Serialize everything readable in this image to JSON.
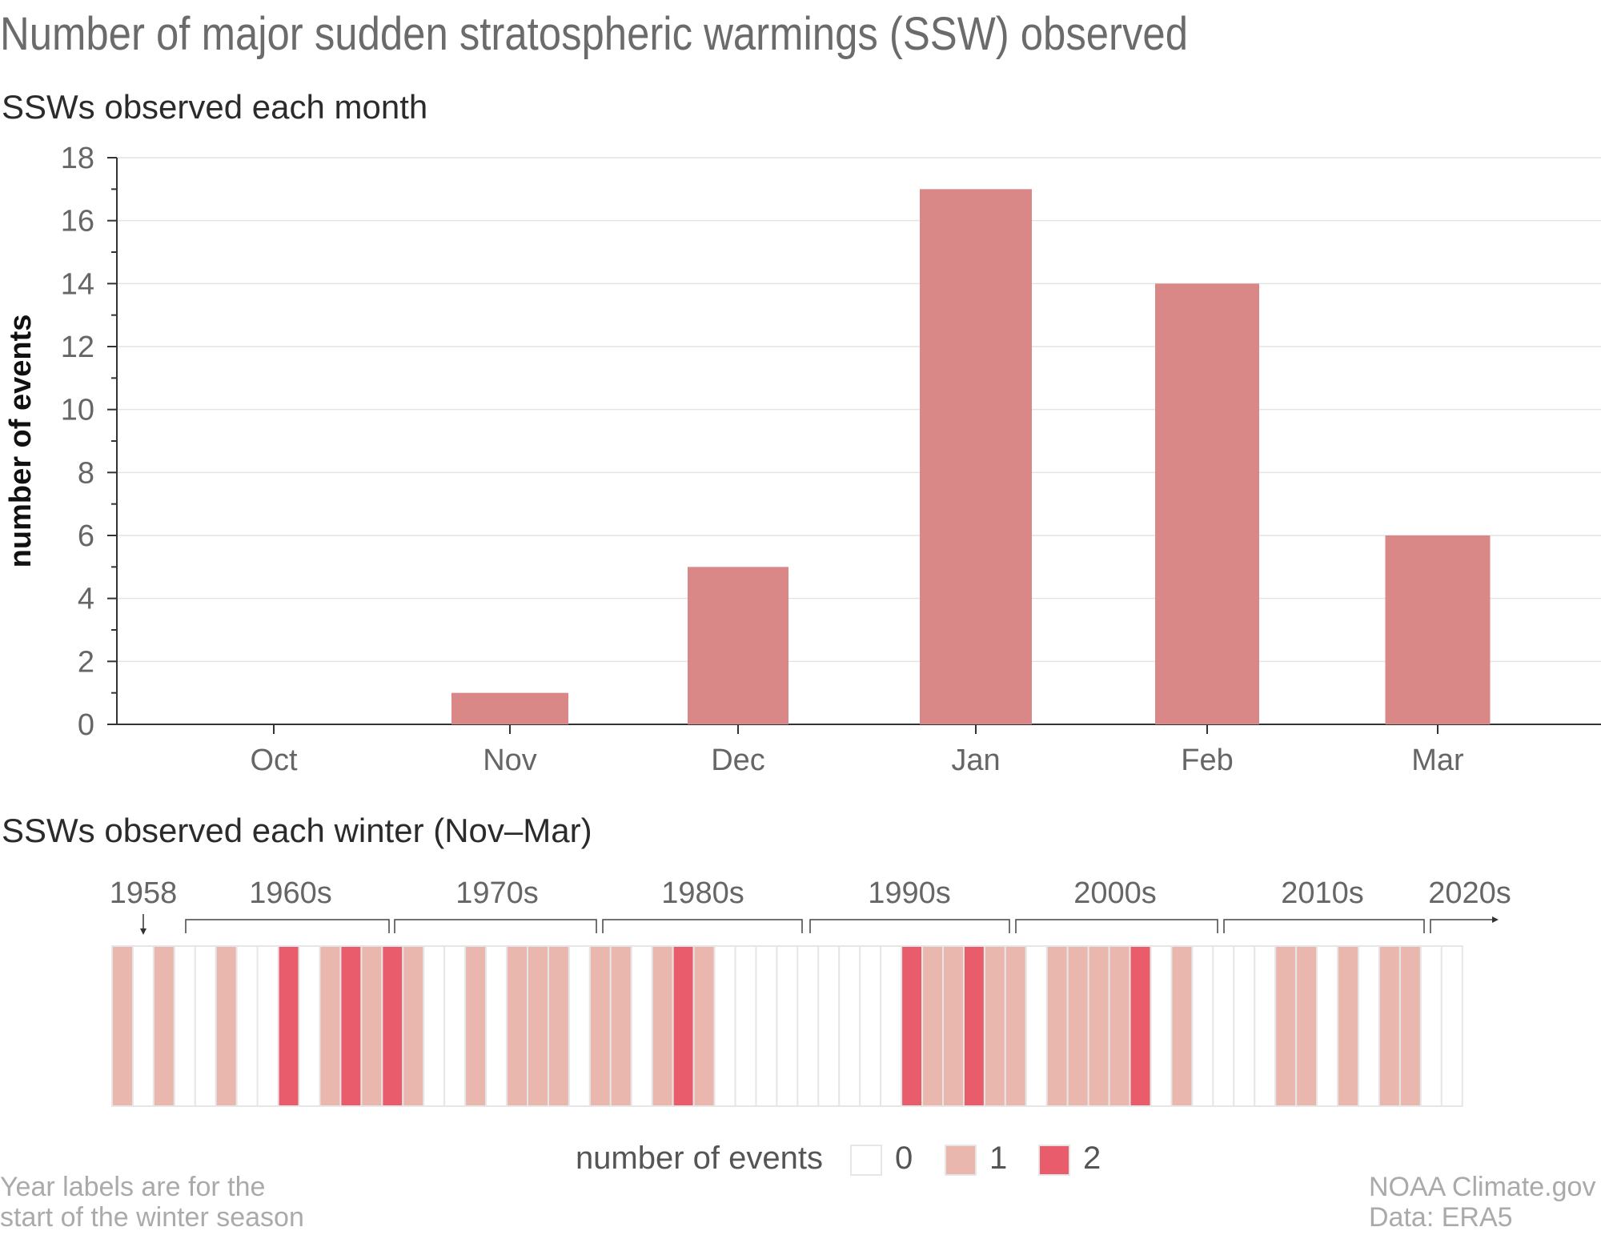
{
  "title": "Number of major sudden stratospheric warmings (SSW) observed",
  "colors": {
    "bar": "#d98787",
    "zero": "#ffffff",
    "one": "#e9b7ad",
    "two": "#e85c6c",
    "cell_border": "#e6e6e6"
  },
  "chart_data": [
    {
      "type": "bar",
      "title": "SSWs observed each month",
      "ylabel": "number of events",
      "xlabel": "",
      "categories": [
        "Oct",
        "Nov",
        "Dec",
        "Jan",
        "Feb",
        "Mar"
      ],
      "values": [
        0,
        1,
        5,
        17,
        14,
        6
      ],
      "ylim": [
        0,
        18
      ],
      "yticks": [
        0,
        2,
        4,
        6,
        8,
        10,
        12,
        14,
        16,
        18
      ],
      "grid": true
    },
    {
      "type": "heatmap",
      "title": "SSWs observed each winter (Nov–Mar)",
      "start_year": 1958,
      "years": [
        1958,
        1959,
        1960,
        1961,
        1962,
        1963,
        1964,
        1965,
        1966,
        1967,
        1968,
        1969,
        1970,
        1971,
        1972,
        1973,
        1974,
        1975,
        1976,
        1977,
        1978,
        1979,
        1980,
        1981,
        1982,
        1983,
        1984,
        1985,
        1986,
        1987,
        1988,
        1989,
        1990,
        1991,
        1992,
        1993,
        1994,
        1995,
        1996,
        1997,
        1998,
        1999,
        2000,
        2001,
        2002,
        2003,
        2004,
        2005,
        2006,
        2007,
        2008,
        2009,
        2010,
        2011,
        2012,
        2013,
        2014,
        2015,
        2016,
        2017,
        2018,
        2019,
        2020,
        2021,
        2022
      ],
      "values": [
        1,
        0,
        1,
        0,
        0,
        1,
        0,
        0,
        2,
        0,
        1,
        2,
        1,
        2,
        1,
        0,
        0,
        1,
        0,
        1,
        1,
        1,
        0,
        1,
        1,
        0,
        1,
        2,
        1,
        0,
        0,
        0,
        0,
        0,
        0,
        0,
        0,
        0,
        2,
        1,
        1,
        2,
        1,
        1,
        0,
        1,
        1,
        1,
        1,
        2,
        0,
        1,
        0,
        0,
        0,
        0,
        1,
        1,
        0,
        1,
        0,
        1,
        1,
        0,
        0
      ],
      "decade_labels": [
        "1958",
        "1960s",
        "1970s",
        "1980s",
        "1990s",
        "2000s",
        "2010s",
        "2020s"
      ],
      "legend": {
        "title": "number of events",
        "items": [
          "0",
          "1",
          "2"
        ]
      }
    }
  ],
  "footnote_left": [
    "Year labels are for the",
    "start of the winter season"
  ],
  "footnote_right": [
    "NOAA Climate.gov",
    "Data: ERA5"
  ]
}
